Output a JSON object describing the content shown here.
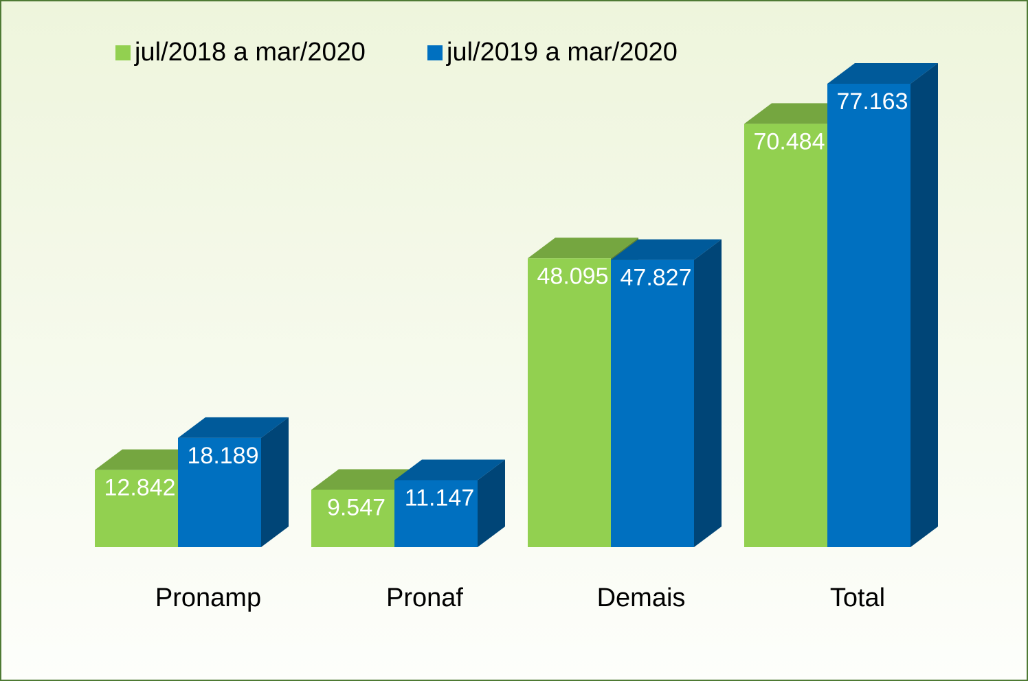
{
  "chart_data": {
    "type": "bar3d",
    "categories": [
      "Pronamp",
      "Pronaf",
      "Demais",
      "Total"
    ],
    "series": [
      {
        "name": "jul/2018 a mar/2020",
        "color": "#92d050",
        "values": [
          12842,
          9547,
          48095,
          70484
        ],
        "value_labels": [
          "12.842",
          "9.547",
          "48.095",
          "70.484"
        ]
      },
      {
        "name": "jul/2019 a mar/2020",
        "color": "#0070c0",
        "values": [
          18189,
          11147,
          47827,
          77163
        ],
        "value_labels": [
          "18.189",
          "11.147",
          "47.827",
          "77.163"
        ]
      }
    ],
    "legend": "top-left"
  }
}
